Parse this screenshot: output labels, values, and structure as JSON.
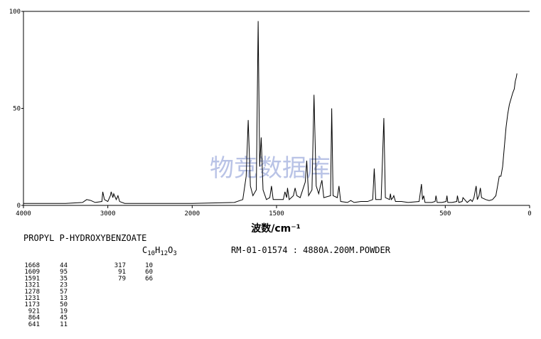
{
  "chart_data": {
    "type": "line",
    "x_label": "波数/cm⁻¹",
    "xlim": [
      4000,
      0
    ],
    "xbreak": 2000,
    "xticks": [
      4000,
      3000,
      2000,
      1500,
      500,
      0
    ],
    "ylim": [
      0,
      100
    ],
    "yticks": [
      0,
      50,
      100
    ],
    "color": "#000000",
    "x": [
      4000,
      3500,
      3300,
      3250,
      3200,
      3150,
      3070,
      3060,
      3040,
      3000,
      2970,
      2960,
      2940,
      2930,
      2900,
      2880,
      2860,
      2800,
      2500,
      2000,
      1750,
      1700,
      1680,
      1668,
      1655,
      1640,
      1620,
      1609,
      1600,
      1591,
      1580,
      1560,
      1540,
      1530,
      1520,
      1460,
      1450,
      1440,
      1435,
      1425,
      1400,
      1390,
      1380,
      1360,
      1345,
      1330,
      1321,
      1310,
      1290,
      1278,
      1265,
      1250,
      1240,
      1231,
      1220,
      1180,
      1173,
      1165,
      1140,
      1130,
      1120,
      1080,
      1060,
      1040,
      1000,
      960,
      930,
      921,
      912,
      880,
      864,
      855,
      830,
      825,
      820,
      810,
      805,
      795,
      760,
      720,
      655,
      641,
      635,
      628,
      620,
      580,
      560,
      555,
      548,
      520,
      495,
      490,
      485,
      460,
      432,
      428,
      420,
      400,
      395,
      385,
      370,
      350,
      340,
      330,
      317,
      310,
      300,
      292,
      285,
      260,
      240,
      220,
      200,
      190,
      180,
      170,
      160,
      150,
      140,
      130,
      120,
      110,
      100,
      91,
      85,
      79,
      75
    ],
    "values": [
      1,
      1,
      1.5,
      3,
      2.5,
      1.5,
      2,
      7,
      3,
      2,
      5,
      7,
      4,
      6,
      3,
      5,
      2,
      1,
      1,
      1,
      1.5,
      3,
      15,
      44,
      10,
      5,
      8,
      95,
      20,
      35,
      8,
      3,
      4,
      10,
      3,
      3,
      7,
      4,
      9,
      3,
      5,
      9,
      5,
      4,
      8,
      12,
      23,
      5,
      8,
      57,
      10,
      6,
      10,
      13,
      4,
      5,
      50,
      5,
      4,
      10,
      2,
      1.5,
      2.5,
      1.5,
      2,
      2,
      3,
      19,
      3,
      3,
      45,
      4,
      3,
      6,
      3,
      4,
      5,
      2,
      2,
      1.5,
      2,
      11,
      3,
      5,
      1.5,
      1.5,
      2,
      5,
      1.5,
      1.5,
      2,
      5,
      1.5,
      1.5,
      2,
      5,
      1.5,
      2,
      4,
      3,
      1.5,
      3,
      2,
      4,
      10,
      3,
      5,
      9,
      4,
      3,
      2.5,
      3,
      5,
      10,
      15,
      15,
      20,
      30,
      40,
      47,
      52,
      55,
      58,
      60,
      64,
      66,
      68
    ]
  },
  "compound": "PROPYL P-HYDROXYBENZOATE",
  "formula": [
    "C",
    "10",
    "H",
    "12",
    "O",
    "3"
  ],
  "sample_info": "RM-01-01574 : 4880A.200M.POWDER",
  "watermark": "物竞数据库",
  "peak_table": {
    "left": {
      "wavenumbers": [
        1668,
        1609,
        1591,
        1321,
        1278,
        1231,
        1173,
        921,
        864,
        641
      ],
      "intensities": [
        44,
        95,
        35,
        23,
        57,
        13,
        50,
        19,
        45,
        11
      ]
    },
    "right": {
      "wavenumbers": [
        317,
        91,
        79
      ],
      "intensities": [
        10,
        60,
        66
      ]
    }
  }
}
